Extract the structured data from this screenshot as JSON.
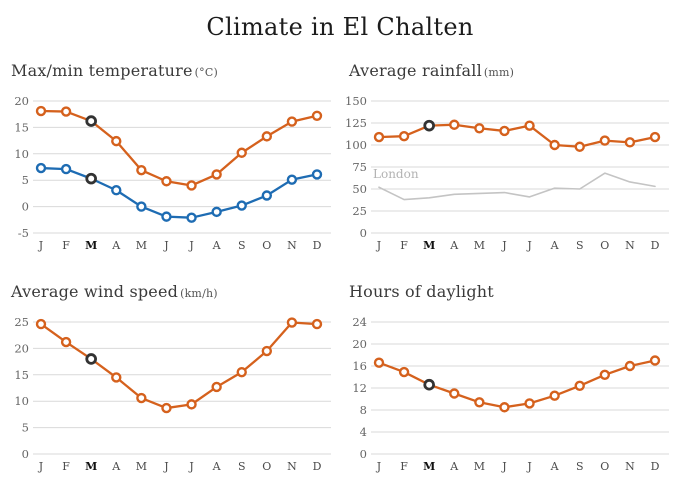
{
  "page_title": "Climate in El Chalten",
  "highlight_month_index": 2,
  "months": [
    "J",
    "F",
    "M",
    "A",
    "M",
    "J",
    "J",
    "A",
    "S",
    "O",
    "N",
    "D"
  ],
  "colors": {
    "orange": "#d5611d",
    "blue": "#1e6cb3",
    "highlight": "#333333",
    "grid": "#d9d9d9",
    "london": "#c4c4c4"
  },
  "chart_data": [
    {
      "id": "temperature",
      "type": "line",
      "title": "Max/min temperature",
      "unit": "(°C)",
      "categories": [
        "J",
        "F",
        "M",
        "A",
        "M",
        "J",
        "J",
        "A",
        "S",
        "O",
        "N",
        "D"
      ],
      "ylim": [
        -5,
        20
      ],
      "yticks": [
        -5,
        0,
        5,
        10,
        15,
        20
      ],
      "grid": true,
      "legend": "none",
      "series": [
        {
          "name": "max",
          "color_key": "orange",
          "markers": true,
          "values": [
            18.1,
            18.0,
            16.2,
            12.4,
            6.9,
            4.8,
            4.0,
            6.1,
            10.2,
            13.3,
            16.1,
            17.2
          ]
        },
        {
          "name": "min",
          "color_key": "blue",
          "markers": true,
          "values": [
            7.3,
            7.1,
            5.3,
            3.1,
            0.0,
            -1.9,
            -2.1,
            -1.0,
            0.2,
            2.1,
            5.1,
            6.1
          ]
        }
      ]
    },
    {
      "id": "rainfall",
      "type": "line",
      "title": "Average rainfall",
      "unit": "(mm)",
      "categories": [
        "J",
        "F",
        "M",
        "A",
        "M",
        "J",
        "J",
        "A",
        "S",
        "O",
        "N",
        "D"
      ],
      "ylim": [
        0,
        150
      ],
      "yticks": [
        0,
        25,
        50,
        75,
        100,
        125,
        150
      ],
      "grid": true,
      "legend": "inline",
      "series": [
        {
          "name": "London",
          "color_key": "london",
          "markers": false,
          "label": "London",
          "values": [
            52,
            38,
            40,
            44,
            45,
            46,
            41,
            51,
            50,
            68,
            58,
            53
          ]
        },
        {
          "name": "El Chalten",
          "color_key": "orange",
          "markers": true,
          "values": [
            109,
            110,
            122,
            123,
            119,
            116,
            122,
            100,
            98,
            105,
            103,
            109
          ]
        }
      ]
    },
    {
      "id": "wind",
      "type": "line",
      "title": "Average wind speed",
      "unit": "(km/h)",
      "categories": [
        "J",
        "F",
        "M",
        "A",
        "M",
        "J",
        "J",
        "A",
        "S",
        "O",
        "N",
        "D"
      ],
      "ylim": [
        0,
        25
      ],
      "yticks": [
        0,
        5,
        10,
        15,
        20,
        25
      ],
      "grid": true,
      "legend": "none",
      "series": [
        {
          "name": "wind speed",
          "color_key": "orange",
          "markers": true,
          "values": [
            24.6,
            21.2,
            18.0,
            14.5,
            10.6,
            8.7,
            9.4,
            12.7,
            15.5,
            19.5,
            24.9,
            24.6
          ]
        }
      ]
    },
    {
      "id": "daylight",
      "type": "line",
      "title": "Hours of daylight",
      "unit": "",
      "categories": [
        "J",
        "F",
        "M",
        "A",
        "M",
        "J",
        "J",
        "A",
        "S",
        "O",
        "N",
        "D"
      ],
      "ylim": [
        0,
        24
      ],
      "yticks": [
        0,
        4,
        8,
        12,
        16,
        20,
        24
      ],
      "grid": true,
      "legend": "none",
      "series": [
        {
          "name": "daylight",
          "color_key": "orange",
          "markers": true,
          "values": [
            16.6,
            14.9,
            12.6,
            11.0,
            9.4,
            8.5,
            9.2,
            10.6,
            12.4,
            14.4,
            16.0,
            17.0
          ]
        }
      ]
    }
  ]
}
